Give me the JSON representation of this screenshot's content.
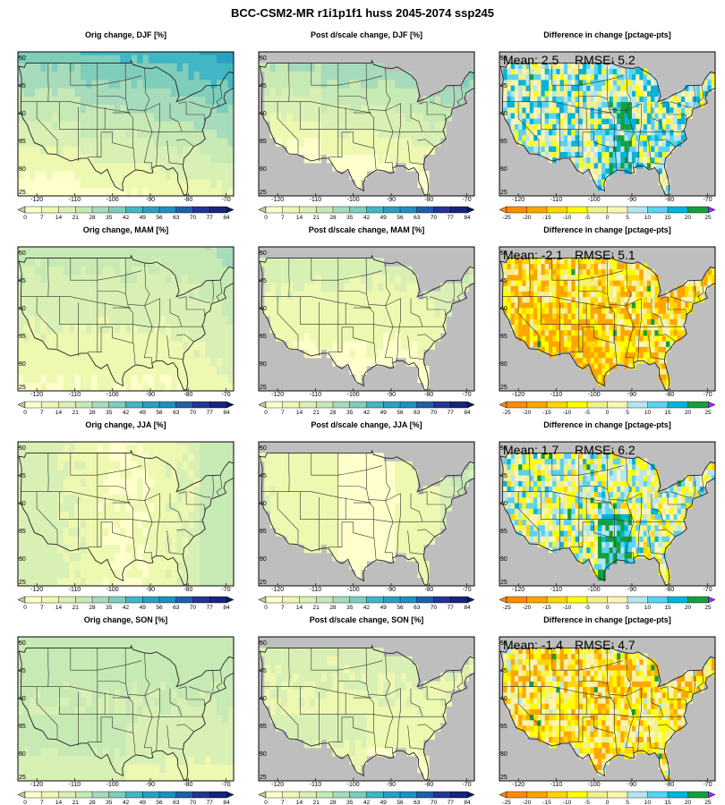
{
  "figure": {
    "title": "BCC-CSM2-MR r1i1p1f1 huss 2045-2074 ssp245"
  },
  "columns": [
    {
      "key": "orig",
      "kind": "change"
    },
    {
      "key": "post",
      "kind": "change"
    },
    {
      "key": "diff",
      "kind": "diff"
    }
  ],
  "rows": [
    {
      "season": "DJF",
      "titles": [
        "Orig change, DJF [%]",
        "Post d/scale change, DJF [%]",
        "Difference in change [pctage-pts]"
      ],
      "mean": "Mean: 2.5",
      "rmse": "RMSE: 5.2"
    },
    {
      "season": "MAM",
      "titles": [
        "Orig change, MAM [%]",
        "Post d/scale change, MAM [%]",
        "Difference in change [pctage-pts]"
      ],
      "mean": "Mean: -2.1",
      "rmse": "RMSE: 5.1"
    },
    {
      "season": "JJA",
      "titles": [
        "Orig change, JJA [%]",
        "Post d/scale change, JJA [%]",
        "Difference in change [pctage-pts]"
      ],
      "mean": "Mean: 1.7",
      "rmse": "RMSE: 6.2"
    },
    {
      "season": "SON",
      "titles": [
        "Orig change, SON [%]",
        "Post d/scale change, SON [%]",
        "Difference in change [pctage-pts]"
      ],
      "mean": "Mean: -1.4",
      "rmse": "RMSE: 4.7"
    }
  ],
  "axes": {
    "x_ticks": [
      "-120",
      "-110",
      "-100",
      "-90",
      "-80",
      "-70"
    ],
    "x_values": [
      -120,
      -110,
      -100,
      -90,
      -80,
      -70
    ],
    "y_ticks": [
      "25",
      "30",
      "35",
      "40",
      "45",
      "50"
    ],
    "y_values": [
      25,
      30,
      35,
      40,
      45,
      50
    ],
    "lon_range": [
      -125,
      -68
    ],
    "lat_range": [
      25,
      51
    ]
  },
  "colorbars": {
    "change": {
      "labels": [
        "0",
        "7",
        "14",
        "21",
        "28",
        "35",
        "42",
        "49",
        "56",
        "63",
        "70",
        "77",
        "84"
      ],
      "colors": [
        "#ffffcc",
        "#edf8b1",
        "#d9f0b4",
        "#c7e9b4",
        "#a6dbbb",
        "#7fcdbb",
        "#41b6c4",
        "#2c9fc0",
        "#1d91c0",
        "#225ea8",
        "#253494",
        "#1a237e",
        "#081d58"
      ],
      "under": "#c8c8a0",
      "over": "#081d58"
    },
    "diff": {
      "labels": [
        "-25",
        "-20",
        "-15",
        "-10",
        "-5",
        "0",
        "5",
        "10",
        "15",
        "20",
        "25"
      ],
      "colors": [
        "#ff8c00",
        "#ffa500",
        "#ffd700",
        "#ffff00",
        "#f0f08c",
        "#faf5b4",
        "#b4e6f0",
        "#5ad2f0",
        "#00b4dc",
        "#14a03c",
        "#008c28"
      ],
      "under": "#ff8c00",
      "over": "#9b30ff"
    }
  },
  "chart_data": [
    {
      "type": "heatmap",
      "panel": "Orig change, DJF [%]",
      "field_range": [
        0,
        56
      ],
      "scale_labels": [
        "0",
        "7",
        "14",
        "21",
        "28",
        "35",
        "42",
        "49",
        "56",
        "63",
        "70",
        "77",
        "84"
      ]
    },
    {
      "type": "heatmap",
      "panel": "Post d/scale change, DJF [%]",
      "field_range": [
        0,
        49
      ],
      "scale_labels": [
        "0",
        "7",
        "14",
        "21",
        "28",
        "35",
        "42",
        "49",
        "56",
        "63",
        "70",
        "77",
        "84"
      ]
    },
    {
      "type": "heatmap",
      "panel": "Difference in change [pctage-pts]",
      "season": "DJF",
      "mean": 2.5,
      "rmse": 5.2,
      "scale_labels": [
        "-25",
        "-20",
        "-15",
        "-10",
        "-5",
        "0",
        "5",
        "10",
        "15",
        "20",
        "25"
      ]
    },
    {
      "type": "heatmap",
      "panel": "Orig change, MAM [%]",
      "field_range": [
        0,
        35
      ],
      "scale_labels": [
        "0",
        "7",
        "14",
        "21",
        "28",
        "35",
        "42",
        "49",
        "56",
        "63",
        "70",
        "77",
        "84"
      ]
    },
    {
      "type": "heatmap",
      "panel": "Post d/scale change, MAM [%]",
      "field_range": [
        0,
        28
      ],
      "scale_labels": [
        "0",
        "7",
        "14",
        "21",
        "28",
        "35",
        "42",
        "49",
        "56",
        "63",
        "70",
        "77",
        "84"
      ]
    },
    {
      "type": "heatmap",
      "panel": "Difference in change [pctage-pts]",
      "season": "MAM",
      "mean": -2.1,
      "rmse": 5.1,
      "scale_labels": [
        "-25",
        "-20",
        "-15",
        "-10",
        "-5",
        "0",
        "5",
        "10",
        "15",
        "20",
        "25"
      ]
    },
    {
      "type": "heatmap",
      "panel": "Orig change, JJA [%]",
      "field_range": [
        0,
        28
      ],
      "scale_labels": [
        "0",
        "7",
        "14",
        "21",
        "28",
        "35",
        "42",
        "49",
        "56",
        "63",
        "70",
        "77",
        "84"
      ]
    },
    {
      "type": "heatmap",
      "panel": "Post d/scale change, JJA [%]",
      "field_range": [
        0,
        28
      ],
      "scale_labels": [
        "0",
        "7",
        "14",
        "21",
        "28",
        "35",
        "42",
        "49",
        "56",
        "63",
        "70",
        "77",
        "84"
      ]
    },
    {
      "type": "heatmap",
      "panel": "Difference in change [pctage-pts]",
      "season": "JJA",
      "mean": 1.7,
      "rmse": 6.2,
      "scale_labels": [
        "-25",
        "-20",
        "-15",
        "-10",
        "-5",
        "0",
        "5",
        "10",
        "15",
        "20",
        "25"
      ]
    },
    {
      "type": "heatmap",
      "panel": "Orig change, SON [%]",
      "field_range": [
        7,
        35
      ],
      "scale_labels": [
        "0",
        "7",
        "14",
        "21",
        "28",
        "35",
        "42",
        "49",
        "56",
        "63",
        "70",
        "77",
        "84"
      ]
    },
    {
      "type": "heatmap",
      "panel": "Post d/scale change, SON [%]",
      "field_range": [
        0,
        28
      ],
      "scale_labels": [
        "0",
        "7",
        "14",
        "21",
        "28",
        "35",
        "42",
        "49",
        "56",
        "63",
        "70",
        "77",
        "84"
      ]
    },
    {
      "type": "heatmap",
      "panel": "Difference in change [pctage-pts]",
      "season": "SON",
      "mean": -1.4,
      "rmse": 4.7,
      "scale_labels": [
        "-25",
        "-20",
        "-15",
        "-10",
        "-5",
        "0",
        "5",
        "10",
        "15",
        "20",
        "25"
      ]
    }
  ]
}
